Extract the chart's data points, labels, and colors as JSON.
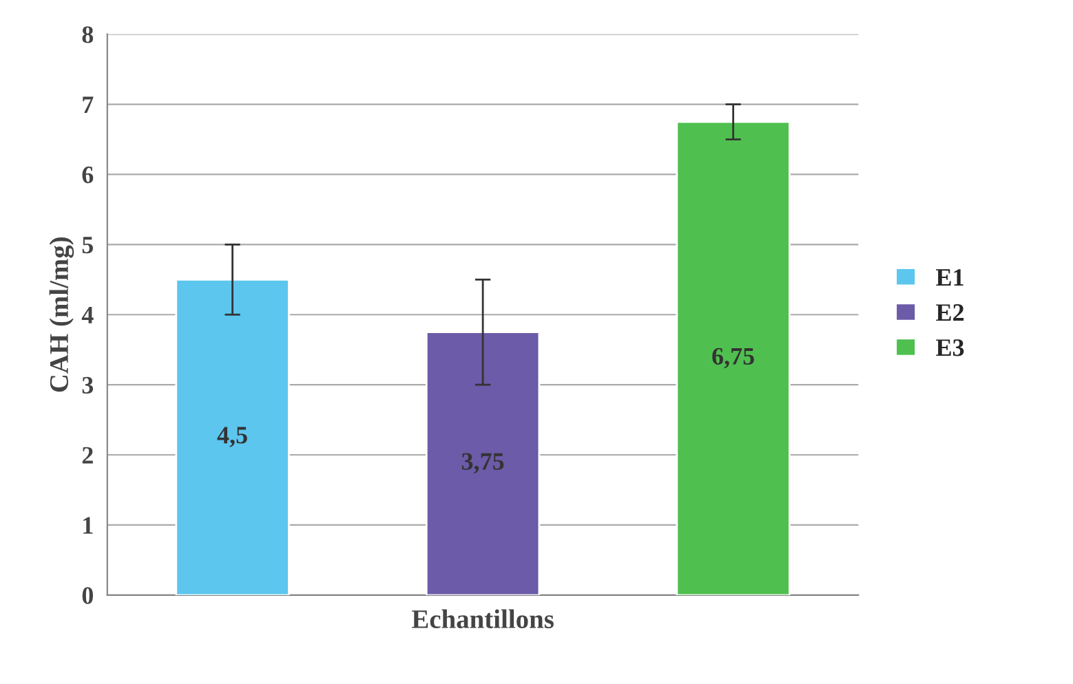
{
  "chart_data": {
    "type": "bar",
    "xlabel": "Echantillons",
    "ylabel": "CAH (ml/mg)",
    "categories": [
      null,
      null,
      null
    ],
    "series": [
      {
        "name": "E1",
        "color": "#5cc6ee",
        "values": [
          4.5,
          null,
          null
        ],
        "errors": [
          0.5,
          null,
          null
        ],
        "value_labels": [
          "4,5",
          null,
          null
        ]
      },
      {
        "name": "E2",
        "color": "#6b5ba8",
        "values": [
          null,
          3.75,
          null
        ],
        "errors": [
          null,
          0.75,
          null
        ],
        "value_labels": [
          null,
          "3,75",
          null
        ]
      },
      {
        "name": "E3",
        "color": "#4fc04f",
        "values": [
          null,
          null,
          6.75
        ],
        "errors": [
          null,
          null,
          0.25
        ],
        "value_labels": [
          null,
          null,
          "6,75"
        ]
      }
    ],
    "ylim": [
      0,
      8
    ],
    "yticks": [
      0,
      1,
      2,
      3,
      4,
      5,
      6,
      7,
      8
    ],
    "grid": "y",
    "legend": "right"
  }
}
